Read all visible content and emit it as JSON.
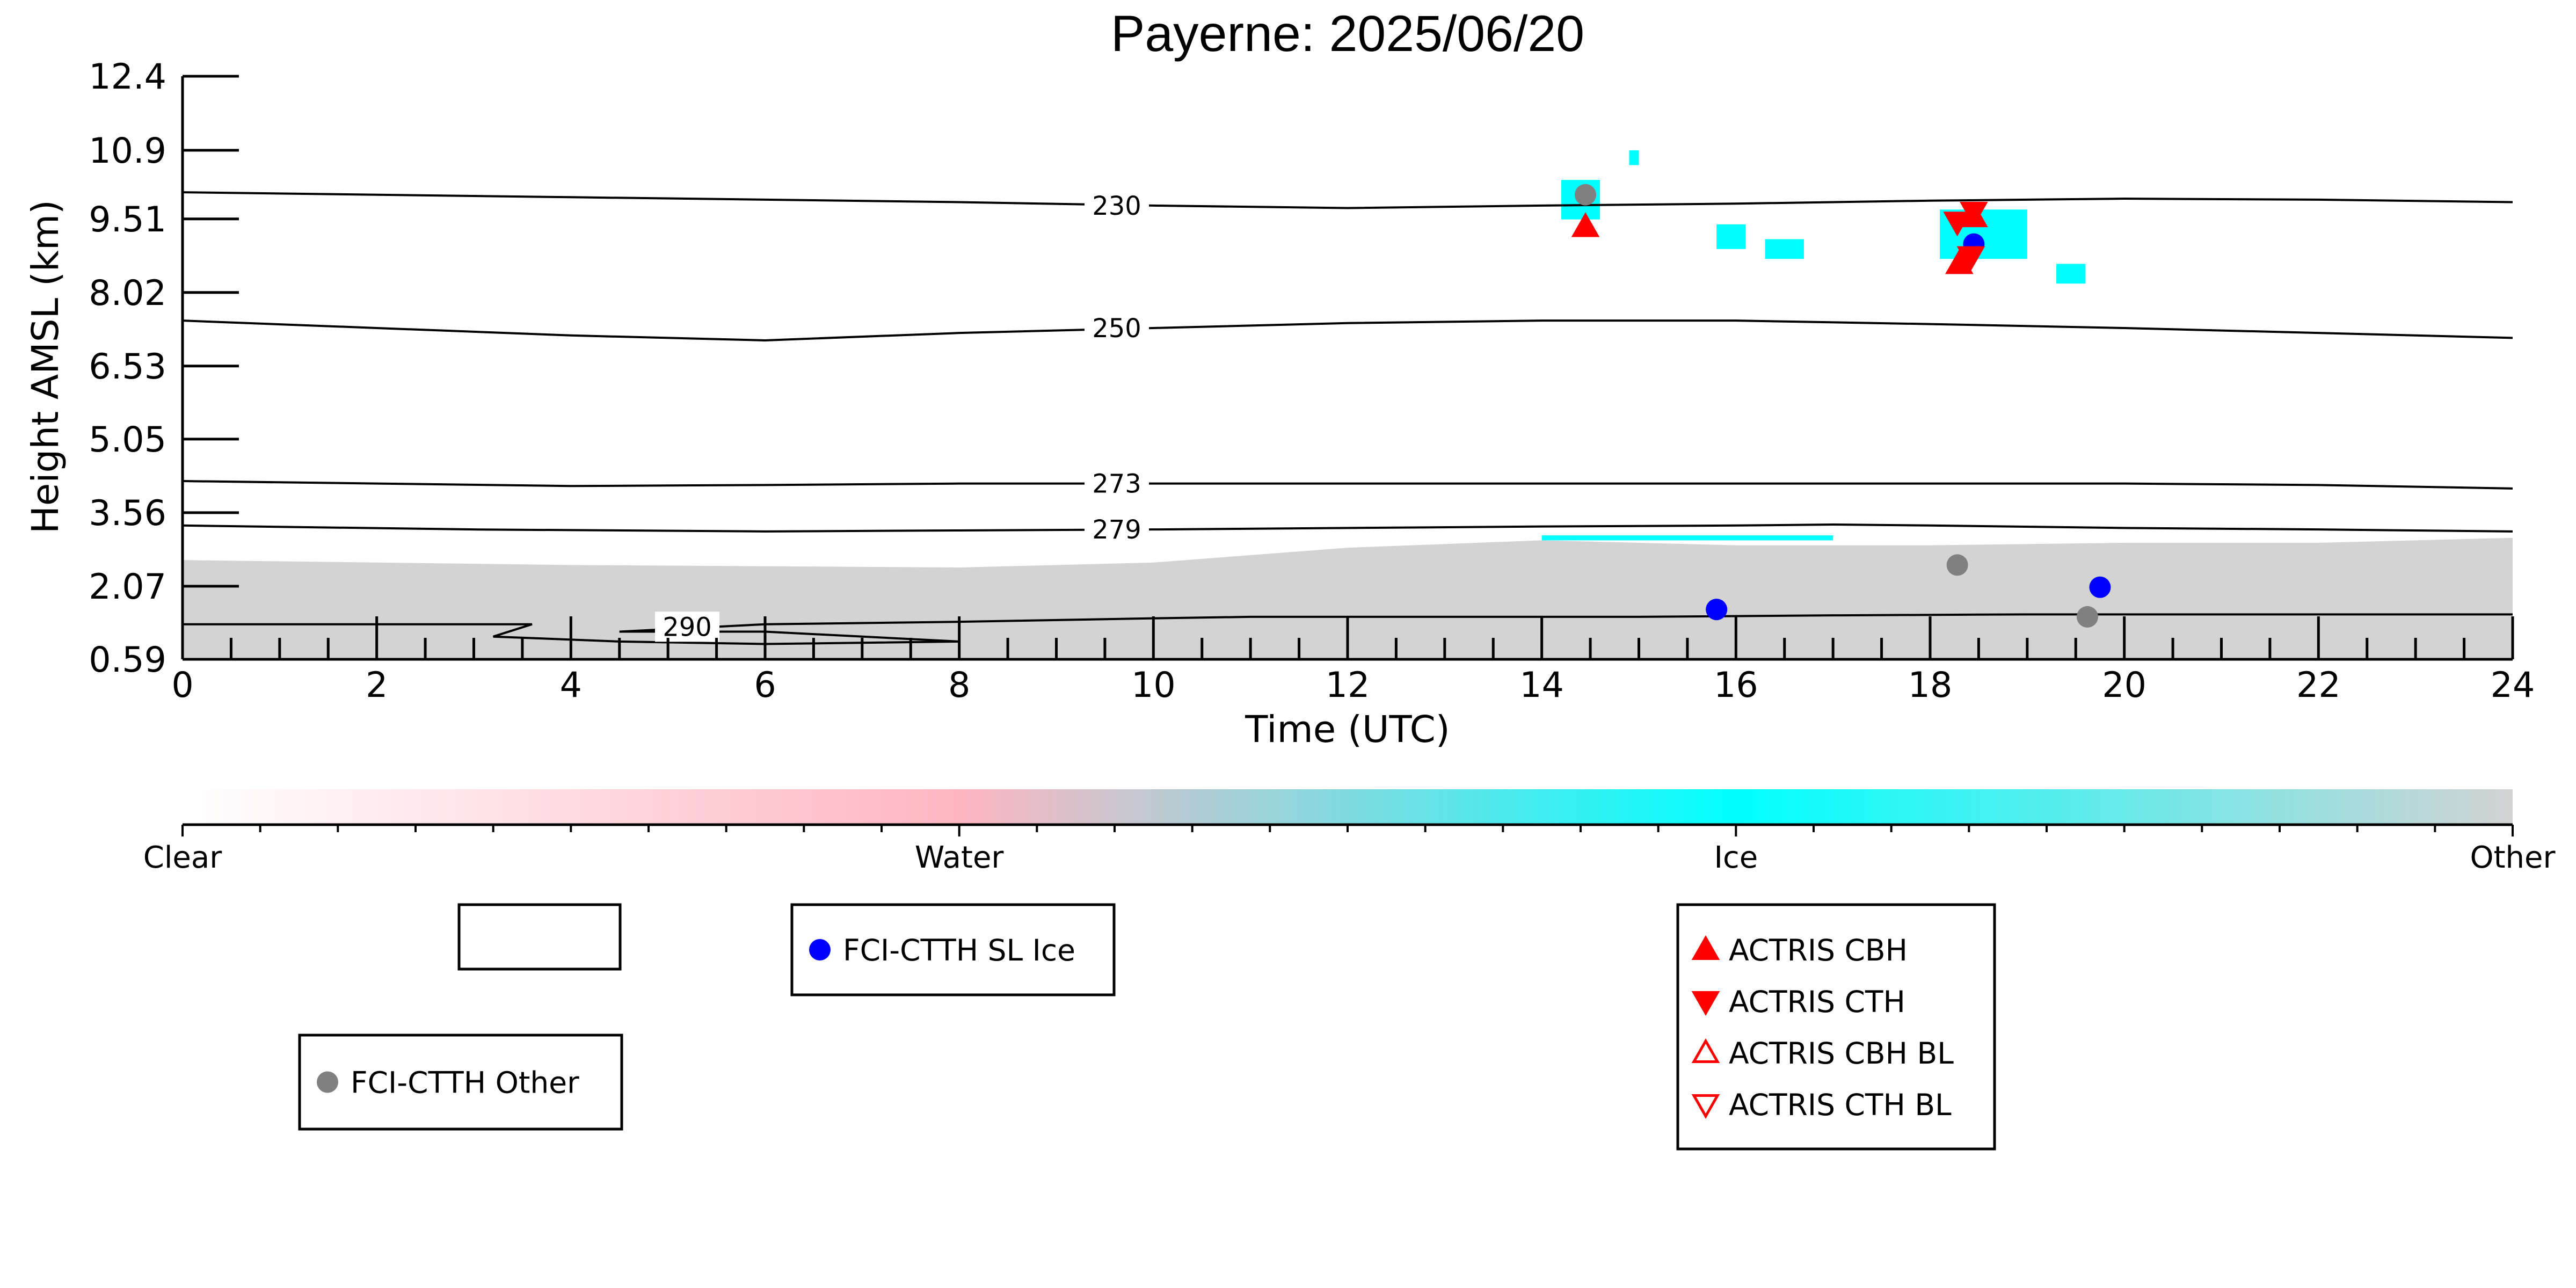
{
  "chart_data": {
    "type": "scatter",
    "title": "Payerne: 2025/06/20",
    "xlabel": "Time (UTC)",
    "ylabel": "Height AMSL (km)",
    "xlim": [
      0,
      24
    ],
    "ylim": [
      0.59,
      12.4
    ],
    "x_ticks": [
      "0",
      "2",
      "4",
      "6",
      "8",
      "10",
      "12",
      "14",
      "16",
      "18",
      "20",
      "22",
      "24"
    ],
    "y_ticks": [
      "0.59",
      "2.07",
      "3.56",
      "5.05",
      "6.53",
      "8.02",
      "9.51",
      "10.9",
      "12.4"
    ],
    "grid": false,
    "colorbar": {
      "labels": [
        "Clear",
        "Water",
        "Ice",
        "Other"
      ],
      "colors": [
        "#ffffff",
        "#ffb6c1",
        "#00ffff",
        "#d3d3d3"
      ]
    },
    "isotherms": [
      {
        "label": "230",
        "points": [
          [
            0,
            10.05
          ],
          [
            4,
            9.95
          ],
          [
            8,
            9.85
          ],
          [
            10,
            9.78
          ],
          [
            12,
            9.73
          ],
          [
            14,
            9.78
          ],
          [
            16,
            9.82
          ],
          [
            18,
            9.88
          ],
          [
            20,
            9.92
          ],
          [
            22,
            9.9
          ],
          [
            24,
            9.85
          ]
        ]
      },
      {
        "label": "250",
        "points": [
          [
            0,
            7.45
          ],
          [
            2,
            7.3
          ],
          [
            4,
            7.15
          ],
          [
            6,
            7.05
          ],
          [
            8,
            7.2
          ],
          [
            10,
            7.3
          ],
          [
            12,
            7.4
          ],
          [
            14,
            7.45
          ],
          [
            16,
            7.45
          ],
          [
            18,
            7.38
          ],
          [
            20,
            7.3
          ],
          [
            22,
            7.2
          ],
          [
            24,
            7.1
          ]
        ]
      },
      {
        "label": "273",
        "points": [
          [
            0,
            4.2
          ],
          [
            2,
            4.15
          ],
          [
            4,
            4.1
          ],
          [
            6,
            4.12
          ],
          [
            8,
            4.15
          ],
          [
            10,
            4.15
          ],
          [
            12,
            4.15
          ],
          [
            14,
            4.15
          ],
          [
            16,
            4.15
          ],
          [
            18,
            4.15
          ],
          [
            20,
            4.15
          ],
          [
            22,
            4.12
          ],
          [
            24,
            4.05
          ]
        ]
      },
      {
        "label": "279",
        "points": [
          [
            0,
            3.3
          ],
          [
            3,
            3.22
          ],
          [
            6,
            3.18
          ],
          [
            8,
            3.2
          ],
          [
            10,
            3.22
          ],
          [
            12,
            3.25
          ],
          [
            14,
            3.28
          ],
          [
            16,
            3.3
          ],
          [
            17,
            3.32
          ],
          [
            18,
            3.3
          ],
          [
            20,
            3.25
          ],
          [
            22,
            3.22
          ],
          [
            24,
            3.18
          ]
        ]
      },
      {
        "label": "290",
        "points": [
          [
            0,
            1.3
          ],
          [
            3,
            1.3
          ],
          [
            3.6,
            1.3
          ],
          [
            3.2,
            1.05
          ],
          [
            4.5,
            0.95
          ],
          [
            6,
            0.9
          ],
          [
            8,
            0.95
          ],
          [
            6,
            1.15
          ],
          [
            4.5,
            1.15
          ],
          [
            6,
            1.3
          ],
          [
            8,
            1.35
          ],
          [
            10,
            1.42
          ],
          [
            11,
            1.45
          ],
          [
            13,
            1.45
          ],
          [
            15,
            1.45
          ],
          [
            17,
            1.48
          ],
          [
            19,
            1.5
          ],
          [
            21,
            1.5
          ],
          [
            24,
            1.5
          ]
        ]
      }
    ],
    "series": [
      {
        "name": "FCI-CTTH SL Ice",
        "marker": "circle",
        "color": "#0000ff",
        "points": [
          [
            15.8,
            1.6
          ],
          [
            18.45,
            9.0
          ],
          [
            19.75,
            2.05
          ]
        ]
      },
      {
        "name": "FCI-CTTH Other",
        "marker": "circle",
        "color": "#808080",
        "points": [
          [
            14.45,
            10.0
          ],
          [
            18.28,
            2.5
          ],
          [
            19.62,
            1.45
          ]
        ]
      },
      {
        "name": "ACTRIS CBH",
        "marker": "triangle-up",
        "color": "#ff0000",
        "points": [
          [
            14.45,
            9.35
          ],
          [
            18.3,
            8.6
          ],
          [
            18.45,
            9.55
          ]
        ]
      },
      {
        "name": "ACTRIS CTH",
        "marker": "triangle-down",
        "color": "#ff0000",
        "points": [
          [
            18.28,
            9.45
          ],
          [
            18.45,
            9.65
          ],
          [
            18.42,
            8.75
          ]
        ]
      },
      {
        "name": "ACTRIS CBH BL",
        "marker": "triangle-up-open",
        "color": "#ff0000",
        "points": []
      },
      {
        "name": "ACTRIS CTH BL",
        "marker": "triangle-down-open",
        "color": "#ff0000",
        "points": []
      }
    ],
    "ice_regions": [
      {
        "x": [
          14.2,
          14.6
        ],
        "y": [
          9.5,
          10.3
        ]
      },
      {
        "x": [
          15.8,
          16.1
        ],
        "y": [
          8.9,
          9.4
        ]
      },
      {
        "x": [
          16.3,
          16.7
        ],
        "y": [
          8.7,
          9.1
        ]
      },
      {
        "x": [
          18.1,
          19.0
        ],
        "y": [
          8.7,
          9.7
        ]
      },
      {
        "x": [
          19.3,
          19.6
        ],
        "y": [
          8.2,
          8.6
        ]
      },
      {
        "x": [
          14.9,
          15.0
        ],
        "y": [
          10.6,
          10.9
        ]
      },
      {
        "x": [
          14.0,
          17.0
        ],
        "y": [
          3.0,
          3.1
        ]
      }
    ],
    "other_region": {
      "x": [
        0,
        24
      ],
      "y_top": [
        [
          0,
          2.6
        ],
        [
          4,
          2.5
        ],
        [
          8,
          2.45
        ],
        [
          10,
          2.55
        ],
        [
          12,
          2.85
        ],
        [
          14,
          3.0
        ],
        [
          16,
          2.9
        ],
        [
          18,
          2.9
        ],
        [
          20,
          2.95
        ],
        [
          22,
          2.95
        ],
        [
          24,
          3.05
        ]
      ]
    }
  },
  "legends": {
    "box1": [],
    "box2": [
      {
        "label": "FCI-CTTH SL Ice",
        "marker": "circle",
        "color": "#0000ff"
      }
    ],
    "box3": [
      {
        "label": "FCI-CTTH Other",
        "marker": "circle",
        "color": "#808080"
      }
    ],
    "box4": [
      {
        "label": "ACTRIS CBH",
        "marker": "triangle-up",
        "color": "#ff0000"
      },
      {
        "label": "ACTRIS CTH",
        "marker": "triangle-down",
        "color": "#ff0000"
      },
      {
        "label": "ACTRIS CBH BL",
        "marker": "triangle-up-open",
        "color": "#ff0000"
      },
      {
        "label": "ACTRIS CTH BL",
        "marker": "triangle-down-open",
        "color": "#ff0000"
      }
    ]
  }
}
